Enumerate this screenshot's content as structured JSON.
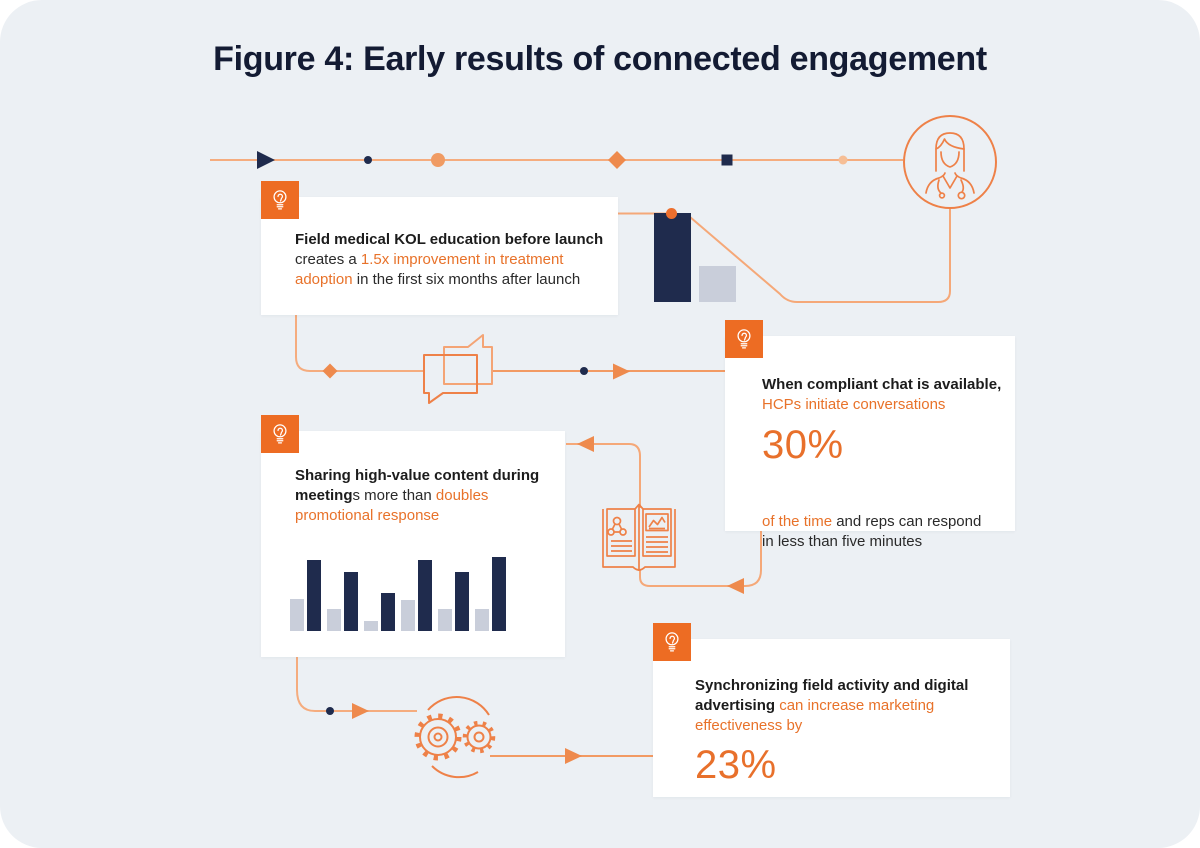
{
  "figure": {
    "title": "Figure 4: Early results of connected engagement"
  },
  "colors": {
    "background": "#ECF0F4",
    "card": "#FFFFFF",
    "navy": "#1F2B4D",
    "accent_text": "#E8722A",
    "stat_orange": "#E8702B",
    "badge_orange": "#ED6C23",
    "connector_orange_light": "#F5AC7E",
    "icon_stroke": "#EE8148",
    "gray_bar": "#C9CEDA",
    "title_ink": "#131B33"
  },
  "icons": [
    "lightbulb-icon",
    "doctor-icon",
    "chat-bubbles-icon",
    "open-book-icon",
    "gears-icon",
    "arrowhead-icon",
    "diamond-marker-icon",
    "dot-marker-icon",
    "square-marker-icon",
    "triangle-marker-icon"
  ],
  "cards": {
    "kol": {
      "lines": [
        [
          {
            "t": "Field medical KOL education before launch",
            "s": "b"
          }
        ],
        [
          {
            "t": "creates a ",
            "s": "n"
          },
          {
            "t": "1.5x improvement in treatment",
            "s": "a"
          }
        ],
        [
          {
            "t": "adoption",
            "s": "a"
          },
          {
            "t": " in the first six months after launch",
            "s": "n"
          }
        ]
      ]
    },
    "chat": {
      "lines_top": [
        [
          {
            "t": "When compliant chat is available,",
            "s": "b"
          }
        ],
        [
          {
            "t": "HCPs initiate conversations",
            "s": "a"
          }
        ]
      ],
      "stat": "30%",
      "lines_bottom": [
        [
          {
            "t": "of the time",
            "s": "a"
          },
          {
            "t": " and reps can respond",
            "s": "n"
          }
        ],
        [
          {
            "t": "in less than five minutes",
            "s": "n"
          }
        ]
      ]
    },
    "content": {
      "lines": [
        [
          {
            "t": "Sharing high-value content during",
            "s": "b"
          }
        ],
        [
          {
            "t": "meeting",
            "s": "b"
          },
          {
            "t": "s more than ",
            "s": "n"
          },
          {
            "t": "doubles",
            "s": "a"
          }
        ],
        [
          {
            "t": "promotional response",
            "s": "a"
          }
        ]
      ]
    },
    "sync": {
      "lines": [
        [
          {
            "t": "Synchronizing field activity and digital",
            "s": "b"
          }
        ],
        [
          {
            "t": "advertising",
            "s": "b"
          },
          {
            "t": " can increase marketing",
            "s": "a"
          }
        ],
        [
          {
            "t": "effectiveness by",
            "s": "a"
          }
        ]
      ],
      "stat": "23%"
    }
  },
  "chart_data": [
    {
      "type": "bar",
      "title": "Treatment adoption mini-chart (illustrative, no axes or labels shown)",
      "categories": [
        "adoption"
      ],
      "series": [
        {
          "name": "with field medical KOL education",
          "color": "navy",
          "values": [
            89
          ]
        },
        {
          "name": "baseline",
          "color": "gray",
          "values": [
            36
          ]
        }
      ],
      "units": "relative height (decorative chart, no axis values printed)",
      "legend": "none",
      "grid": false
    },
    {
      "type": "bar",
      "title": "Promotional response mini-chart (illustrative, no axes or labels shown)",
      "categories": [
        "1",
        "2",
        "3",
        "4",
        "5",
        "6"
      ],
      "series": [
        {
          "name": "without high-value content",
          "color": "gray",
          "values": [
            32,
            22,
            10,
            31,
            22,
            22
          ]
        },
        {
          "name": "with high-value content during meetings",
          "color": "navy",
          "values": [
            71,
            59,
            38,
            71,
            59,
            74
          ]
        }
      ],
      "units": "relative height (decorative chart, no axis values printed)",
      "legend": "none",
      "grid": false
    }
  ]
}
